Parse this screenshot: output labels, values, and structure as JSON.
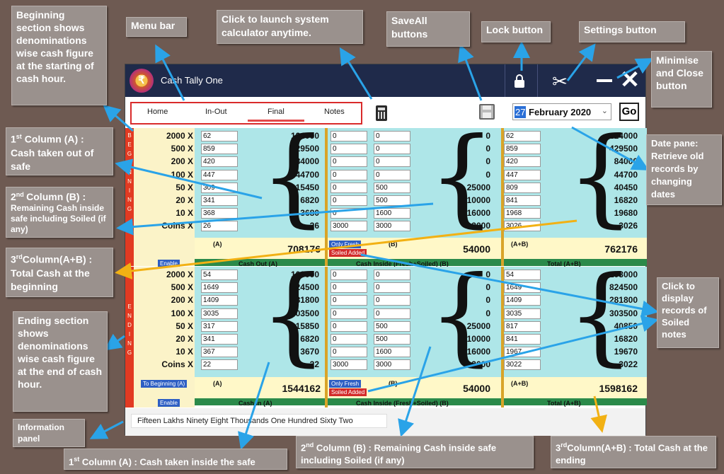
{
  "app": {
    "title": "Cash Tally One",
    "logo_glyph": "₹",
    "tabs": [
      {
        "label": "Home"
      },
      {
        "label": "In-Out"
      },
      {
        "label": "Final"
      },
      {
        "label": "Notes"
      }
    ],
    "date": {
      "day": "27",
      "month_year": "February  2020"
    },
    "go_label": "Go",
    "close_glyph": "✕",
    "settings_glyph": "✂"
  },
  "sections": {
    "beginning": {
      "side_label": "BEGINNING",
      "rows": [
        {
          "denom": "2000  X",
          "a": "62",
          "a_amt": "124000",
          "b1": "0",
          "b2": "0",
          "b_amt": "0",
          "t": "62",
          "t_amt": "124000"
        },
        {
          "denom": "500  X",
          "a": "859",
          "a_amt": "429500",
          "b1": "0",
          "b2": "0",
          "b_amt": "0",
          "t": "859",
          "t_amt": "429500"
        },
        {
          "denom": "200  X",
          "a": "420",
          "a_amt": "84000",
          "b1": "0",
          "b2": "0",
          "b_amt": "0",
          "t": "420",
          "t_amt": "84000"
        },
        {
          "denom": "100  X",
          "a": "447",
          "a_amt": "44700",
          "b1": "0",
          "b2": "0",
          "b_amt": "0",
          "t": "447",
          "t_amt": "44700"
        },
        {
          "denom": "50  X",
          "a": "309",
          "a_amt": "15450",
          "b1": "0",
          "b2": "500",
          "b_amt": "25000",
          "t": "809",
          "t_amt": "40450"
        },
        {
          "denom": "20  X",
          "a": "341",
          "a_amt": "6820",
          "b1": "0",
          "b2": "500",
          "b_amt": "10000",
          "t": "841",
          "t_amt": "16820"
        },
        {
          "denom": "10  X",
          "a": "368",
          "a_amt": "3680",
          "b1": "0",
          "b2": "1600",
          "b_amt": "16000",
          "t": "1968",
          "t_amt": "19680"
        },
        {
          "denom": "Coins  X",
          "a": "26",
          "a_amt": "26",
          "b1": "3000",
          "b2": "3000",
          "b_amt": "3000",
          "t": "3026",
          "t_amt": "3026"
        }
      ],
      "sum_a_label": "(A)",
      "sum_a": "708176",
      "sum_b_label": "(B)",
      "sum_b": "54000",
      "sum_t_label": "(A+B)",
      "sum_t": "762176",
      "only_fresh": "Only Fresh",
      "soiled_added": "Soiled Added",
      "enable": "Enable",
      "cap_a": "Cash Out (A)",
      "cap_b": "Cash Inside (Fresh+Soiled) (B)",
      "cap_t": "Total (A+B)"
    },
    "ending": {
      "side_label": "ENDING",
      "rows": [
        {
          "denom": "2000  X",
          "a": "54",
          "a_amt": "108000",
          "b1": "0",
          "b2": "0",
          "b_amt": "0",
          "t": "54",
          "t_amt": "108000"
        },
        {
          "denom": "500  X",
          "a": "1649",
          "a_amt": "824500",
          "b1": "0",
          "b2": "0",
          "b_amt": "0",
          "t": "1649",
          "t_amt": "824500"
        },
        {
          "denom": "200  X",
          "a": "1409",
          "a_amt": "281800",
          "b1": "0",
          "b2": "0",
          "b_amt": "0",
          "t": "1409",
          "t_amt": "281800"
        },
        {
          "denom": "100  X",
          "a": "3035",
          "a_amt": "303500",
          "b1": "0",
          "b2": "0",
          "b_amt": "0",
          "t": "3035",
          "t_amt": "303500"
        },
        {
          "denom": "50  X",
          "a": "317",
          "a_amt": "15850",
          "b1": "0",
          "b2": "500",
          "b_amt": "25000",
          "t": "817",
          "t_amt": "40850"
        },
        {
          "denom": "20  X",
          "a": "341",
          "a_amt": "6820",
          "b1": "0",
          "b2": "500",
          "b_amt": "10000",
          "t": "841",
          "t_amt": "16820"
        },
        {
          "denom": "10  X",
          "a": "367",
          "a_amt": "3670",
          "b1": "0",
          "b2": "1600",
          "b_amt": "16000",
          "t": "1967",
          "t_amt": "19670"
        },
        {
          "denom": "Coins  X",
          "a": "22",
          "a_amt": "22",
          "b1": "3000",
          "b2": "3000",
          "b_amt": "3000",
          "t": "3022",
          "t_amt": "3022"
        }
      ],
      "sum_a_label": "(A)",
      "sum_a": "1544162",
      "sum_b_label": "(B)",
      "sum_b": "54000",
      "sum_t_label": "(A+B)",
      "sum_t": "1598162",
      "only_fresh": "Only Fresh",
      "soiled_added": "Soiled Added",
      "to_beginning": "To Beginning (A)",
      "enable": "Enable",
      "cap_a": "Cash In (A)",
      "cap_b": "Cash Inside (Fresh+Soiled) (B)",
      "cap_t": "Total (A+B)"
    }
  },
  "info_panel_text": "Fifteen Lakhs Ninety Eight Thousands One Hundred Sixty Two",
  "annotations": {
    "beginning_section": "Beginning section shows denominations wise cash figure at the starting of cash hour.",
    "menu_bar": "Menu bar",
    "calculator": "Click to launch system calculator anytime.",
    "saveall": "SaveAll buttons",
    "lock": "Lock button",
    "settings": "Settings button",
    "minimise_close": "Minimise and Close button",
    "col_a_begin_1": "1",
    "col_a_begin_2": "Column (A) : Cash taken out of safe",
    "col_b_begin_1": "2",
    "col_b_begin_2": "Column (B) :",
    "col_b_begin_3": "Remaining Cash inside safe including Soiled (if any)",
    "col_ab_begin_1": "3",
    "col_ab_begin_2": "Column(A+B) : Total Cash at the beginning",
    "date_pane": "Date pane: Retrieve old records by changing dates",
    "soiled_notes": "Click to display records of Soiled notes",
    "ending_section": "Ending section shows denominations wise cash figure at the end of cash hour.",
    "info_panel": "Information panel",
    "col_a_end_1": "1",
    "col_a_end_2": "Column (A) : Cash taken inside the safe",
    "col_b_end_1": "2",
    "col_b_end_2": "Column (B) : Remaining Cash inside safe including Soiled (if any)",
    "col_ab_end_1": "3",
    "col_ab_end_2": "Column(A+B) : Total Cash at the ending",
    "ordinal_st": "st",
    "ordinal_nd": "nd",
    "ordinal_rd": "rd"
  },
  "colors": {
    "background": "#6e5a52",
    "titlebar": "#1f2a4a",
    "panel_cyan": "#aee6e8",
    "denom_yellow": "#fbf3c8",
    "side_red": "#e23a22",
    "arrow_blue": "#2aa3e8",
    "arrow_orange": "#f2b114"
  }
}
